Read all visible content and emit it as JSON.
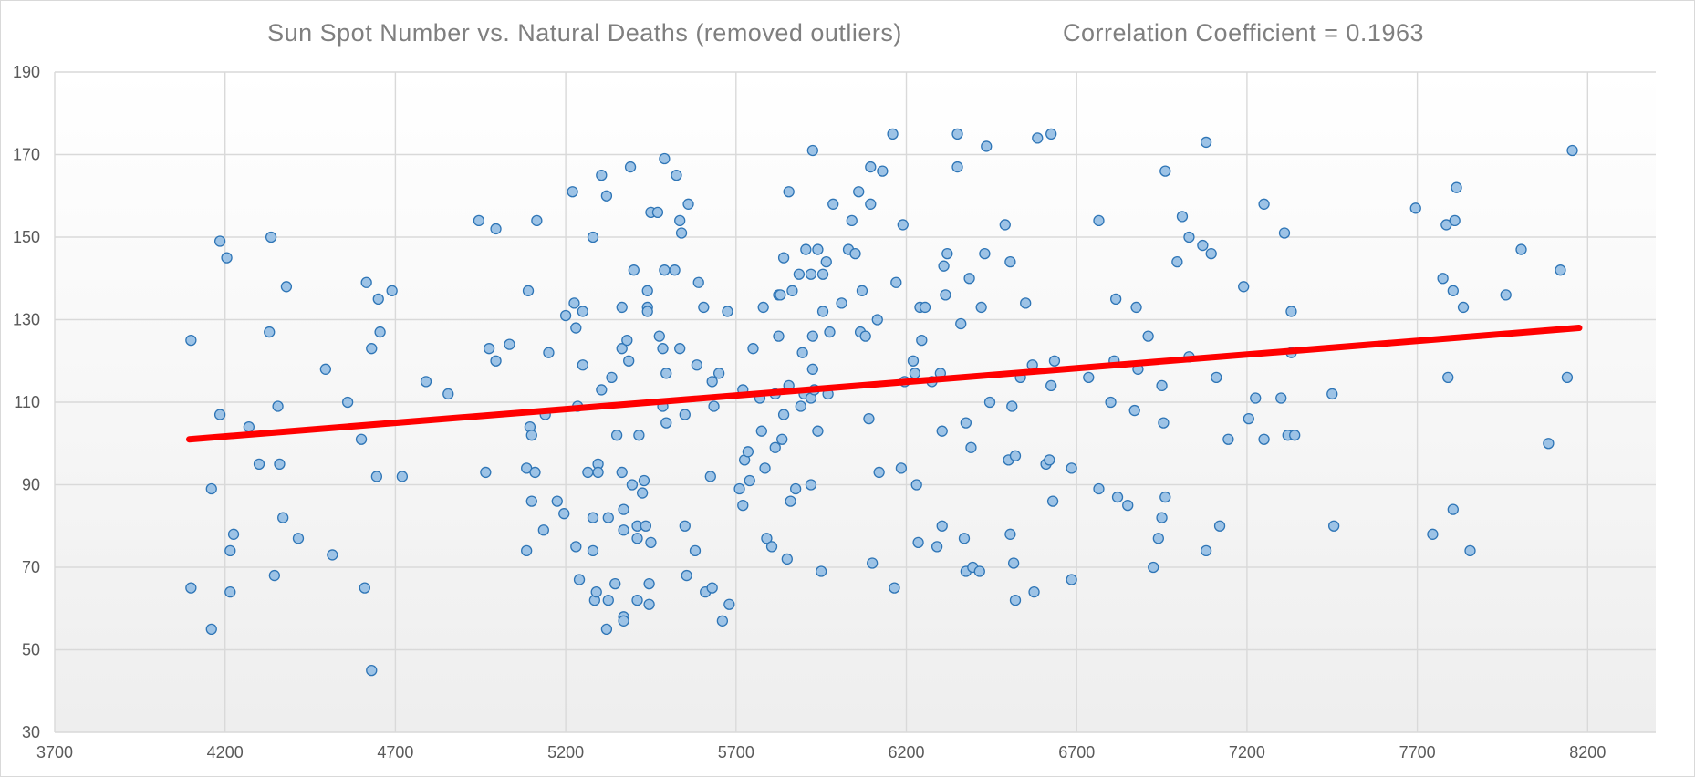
{
  "chart_data": {
    "type": "scatter",
    "title": "Sun Spot Number vs. Natural Deaths (removed outliers)",
    "subtitle": "Correlation Coefficient = 0.1963",
    "xlabel": "",
    "ylabel": "",
    "xlim": [
      3700,
      8400
    ],
    "ylim": [
      30,
      190
    ],
    "x_ticks": [
      3700,
      4200,
      4700,
      5200,
      5700,
      6200,
      6700,
      7200,
      7700,
      8200
    ],
    "y_ticks": [
      30,
      50,
      70,
      90,
      110,
      130,
      150,
      170,
      190
    ],
    "grid": true,
    "point_color": "#9dc3e6",
    "point_edge_color": "#2e75b6",
    "trendline": {
      "color": "#ff0000",
      "x": [
        4095,
        8175
      ],
      "y": [
        101,
        128
      ]
    },
    "points": [
      [
        4100,
        125
      ],
      [
        4100,
        65
      ],
      [
        4160,
        89
      ],
      [
        4160,
        55
      ],
      [
        4185,
        107
      ],
      [
        4185,
        149
      ],
      [
        4205,
        145
      ],
      [
        4215,
        74
      ],
      [
        4215,
        64
      ],
      [
        4225,
        78
      ],
      [
        4270,
        104
      ],
      [
        4300,
        95
      ],
      [
        4330,
        127
      ],
      [
        4335,
        150
      ],
      [
        4345,
        68
      ],
      [
        4355,
        109
      ],
      [
        4360,
        95
      ],
      [
        4370,
        82
      ],
      [
        4380,
        138
      ],
      [
        4415,
        77
      ],
      [
        4495,
        118
      ],
      [
        4515,
        73
      ],
      [
        4560,
        110
      ],
      [
        4600,
        101
      ],
      [
        4610,
        65
      ],
      [
        4615,
        139
      ],
      [
        4630,
        45
      ],
      [
        4630,
        123
      ],
      [
        4645,
        92
      ],
      [
        4650,
        135
      ],
      [
        4655,
        127
      ],
      [
        4690,
        137
      ],
      [
        4720,
        92
      ],
      [
        4790,
        115
      ],
      [
        4855,
        112
      ],
      [
        4945,
        154
      ],
      [
        4965,
        93
      ],
      [
        4975,
        123
      ],
      [
        4995,
        152
      ],
      [
        4995,
        120
      ],
      [
        5035,
        124
      ],
      [
        5085,
        74
      ],
      [
        5085,
        94
      ],
      [
        5090,
        137
      ],
      [
        5095,
        104
      ],
      [
        5100,
        102
      ],
      [
        5100,
        86
      ],
      [
        5110,
        93
      ],
      [
        5115,
        154
      ],
      [
        5135,
        79
      ],
      [
        5140,
        107
      ],
      [
        5150,
        122
      ],
      [
        5175,
        86
      ],
      [
        5195,
        83
      ],
      [
        5200,
        131
      ],
      [
        5220,
        161
      ],
      [
        5225,
        134
      ],
      [
        5230,
        75
      ],
      [
        5230,
        128
      ],
      [
        5235,
        109
      ],
      [
        5240,
        67
      ],
      [
        5250,
        119
      ],
      [
        5250,
        132
      ],
      [
        5265,
        93
      ],
      [
        5280,
        74
      ],
      [
        5280,
        82
      ],
      [
        5280,
        150
      ],
      [
        5285,
        62
      ],
      [
        5290,
        64
      ],
      [
        5295,
        95
      ],
      [
        5295,
        93
      ],
      [
        5305,
        165
      ],
      [
        5305,
        113
      ],
      [
        5320,
        160
      ],
      [
        5320,
        55
      ],
      [
        5325,
        82
      ],
      [
        5325,
        62
      ],
      [
        5335,
        116
      ],
      [
        5345,
        66
      ],
      [
        5350,
        102
      ],
      [
        5365,
        93
      ],
      [
        5365,
        123
      ],
      [
        5370,
        84
      ],
      [
        5365,
        133
      ],
      [
        5370,
        79
      ],
      [
        5370,
        58
      ],
      [
        5370,
        57
      ],
      [
        5380,
        125
      ],
      [
        5385,
        120
      ],
      [
        5390,
        167
      ],
      [
        5395,
        90
      ],
      [
        5400,
        142
      ],
      [
        5410,
        77
      ],
      [
        5410,
        62
      ],
      [
        5410,
        80
      ],
      [
        5415,
        102
      ],
      [
        5425,
        88
      ],
      [
        5440,
        133
      ],
      [
        5430,
        91
      ],
      [
        5435,
        80
      ],
      [
        5440,
        137
      ],
      [
        5440,
        132
      ],
      [
        5445,
        66
      ],
      [
        5445,
        61
      ],
      [
        5450,
        76
      ],
      [
        5450,
        156
      ],
      [
        5470,
        156
      ],
      [
        5475,
        126
      ],
      [
        5485,
        123
      ],
      [
        5485,
        109
      ],
      [
        5490,
        169
      ],
      [
        5490,
        142
      ],
      [
        5495,
        117
      ],
      [
        5495,
        105
      ],
      [
        5520,
        142
      ],
      [
        5525,
        165
      ],
      [
        5535,
        154
      ],
      [
        5540,
        151
      ],
      [
        5550,
        107
      ],
      [
        5550,
        80
      ],
      [
        5555,
        68
      ],
      [
        5560,
        158
      ],
      [
        5535,
        123
      ],
      [
        5580,
        74
      ],
      [
        5585,
        119
      ],
      [
        5590,
        139
      ],
      [
        5605,
        133
      ],
      [
        5610,
        64
      ],
      [
        5625,
        92
      ],
      [
        5630,
        115
      ],
      [
        5630,
        65
      ],
      [
        5635,
        109
      ],
      [
        5650,
        117
      ],
      [
        5660,
        57
      ],
      [
        5675,
        132
      ],
      [
        5680,
        61
      ],
      [
        5710,
        89
      ],
      [
        5720,
        113
      ],
      [
        5720,
        85
      ],
      [
        5725,
        96
      ],
      [
        5735,
        98
      ],
      [
        5740,
        91
      ],
      [
        5750,
        123
      ],
      [
        5770,
        111
      ],
      [
        5775,
        103
      ],
      [
        5780,
        133
      ],
      [
        5785,
        94
      ],
      [
        5790,
        77
      ],
      [
        5805,
        75
      ],
      [
        5815,
        112
      ],
      [
        5815,
        99
      ],
      [
        5825,
        136
      ],
      [
        5825,
        126
      ],
      [
        5830,
        136
      ],
      [
        5835,
        101
      ],
      [
        5840,
        145
      ],
      [
        5840,
        107
      ],
      [
        5850,
        72
      ],
      [
        5855,
        114
      ],
      [
        5855,
        161
      ],
      [
        5860,
        86
      ],
      [
        5865,
        137
      ],
      [
        5875,
        89
      ],
      [
        5885,
        141
      ],
      [
        5890,
        109
      ],
      [
        5895,
        122
      ],
      [
        5900,
        112
      ],
      [
        5905,
        147
      ],
      [
        5920,
        141
      ],
      [
        5920,
        111
      ],
      [
        5920,
        90
      ],
      [
        5925,
        118
      ],
      [
        5925,
        171
      ],
      [
        5925,
        126
      ],
      [
        5930,
        113
      ],
      [
        5940,
        147
      ],
      [
        5940,
        103
      ],
      [
        5950,
        69
      ],
      [
        5955,
        132
      ],
      [
        5955,
        141
      ],
      [
        5965,
        144
      ],
      [
        5970,
        112
      ],
      [
        5975,
        127
      ],
      [
        5985,
        158
      ],
      [
        6010,
        134
      ],
      [
        6030,
        147
      ],
      [
        6040,
        154
      ],
      [
        6050,
        146
      ],
      [
        6060,
        161
      ],
      [
        6065,
        127
      ],
      [
        6070,
        137
      ],
      [
        6080,
        126
      ],
      [
        6090,
        106
      ],
      [
        6095,
        167
      ],
      [
        6095,
        158
      ],
      [
        6100,
        71
      ],
      [
        6115,
        130
      ],
      [
        6120,
        93
      ],
      [
        6130,
        166
      ],
      [
        6160,
        175
      ],
      [
        6165,
        65
      ],
      [
        6170,
        139
      ],
      [
        6185,
        94
      ],
      [
        6190,
        153
      ],
      [
        6195,
        115
      ],
      [
        6220,
        120
      ],
      [
        6225,
        117
      ],
      [
        6230,
        90
      ],
      [
        6235,
        76
      ],
      [
        6240,
        133
      ],
      [
        6245,
        125
      ],
      [
        6255,
        133
      ],
      [
        6275,
        115
      ],
      [
        6290,
        75
      ],
      [
        6300,
        117
      ],
      [
        6305,
        103
      ],
      [
        6305,
        80
      ],
      [
        6310,
        143
      ],
      [
        6315,
        136
      ],
      [
        6320,
        146
      ],
      [
        6350,
        167
      ],
      [
        6350,
        175
      ],
      [
        6360,
        129
      ],
      [
        6370,
        77
      ],
      [
        6375,
        105
      ],
      [
        6375,
        69
      ],
      [
        6385,
        140
      ],
      [
        6390,
        99
      ],
      [
        6395,
        70
      ],
      [
        6415,
        69
      ],
      [
        6420,
        133
      ],
      [
        6430,
        146
      ],
      [
        6435,
        172
      ],
      [
        6445,
        110
      ],
      [
        6490,
        153
      ],
      [
        6500,
        96
      ],
      [
        6505,
        144
      ],
      [
        6505,
        78
      ],
      [
        6510,
        109
      ],
      [
        6515,
        71
      ],
      [
        6520,
        97
      ],
      [
        6520,
        62
      ],
      [
        6535,
        116
      ],
      [
        6550,
        134
      ],
      [
        6570,
        119
      ],
      [
        6575,
        64
      ],
      [
        6585,
        174
      ],
      [
        6610,
        95
      ],
      [
        6620,
        96
      ],
      [
        6625,
        175
      ],
      [
        6625,
        114
      ],
      [
        6630,
        86
      ],
      [
        6635,
        120
      ],
      [
        6685,
        94
      ],
      [
        6685,
        67
      ],
      [
        6735,
        116
      ],
      [
        6765,
        154
      ],
      [
        6765,
        89
      ],
      [
        6800,
        110
      ],
      [
        6810,
        120
      ],
      [
        6815,
        135
      ],
      [
        6820,
        87
      ],
      [
        6850,
        85
      ],
      [
        6870,
        108
      ],
      [
        6875,
        133
      ],
      [
        6880,
        118
      ],
      [
        6910,
        126
      ],
      [
        6925,
        70
      ],
      [
        6940,
        77
      ],
      [
        6950,
        114
      ],
      [
        6950,
        82
      ],
      [
        6955,
        105
      ],
      [
        6960,
        166
      ],
      [
        6960,
        87
      ],
      [
        6995,
        144
      ],
      [
        7010,
        155
      ],
      [
        7030,
        121
      ],
      [
        7030,
        150
      ],
      [
        7070,
        148
      ],
      [
        7080,
        173
      ],
      [
        7080,
        74
      ],
      [
        7095,
        146
      ],
      [
        7110,
        116
      ],
      [
        7120,
        80
      ],
      [
        7145,
        101
      ],
      [
        7190,
        138
      ],
      [
        7205,
        106
      ],
      [
        7225,
        111
      ],
      [
        7250,
        158
      ],
      [
        7250,
        101
      ],
      [
        7300,
        111
      ],
      [
        7310,
        151
      ],
      [
        7320,
        102
      ],
      [
        7330,
        122
      ],
      [
        7330,
        132
      ],
      [
        7340,
        102
      ],
      [
        7450,
        112
      ],
      [
        7455,
        80
      ],
      [
        7695,
        157
      ],
      [
        7745,
        78
      ],
      [
        7775,
        140
      ],
      [
        7785,
        153
      ],
      [
        7790,
        116
      ],
      [
        7805,
        137
      ],
      [
        7810,
        154
      ],
      [
        7805,
        84
      ],
      [
        7815,
        162
      ],
      [
        7835,
        133
      ],
      [
        7855,
        74
      ],
      [
        7960,
        136
      ],
      [
        8005,
        147
      ],
      [
        8085,
        100
      ],
      [
        8120,
        142
      ],
      [
        8140,
        116
      ],
      [
        8155,
        171
      ]
    ]
  }
}
